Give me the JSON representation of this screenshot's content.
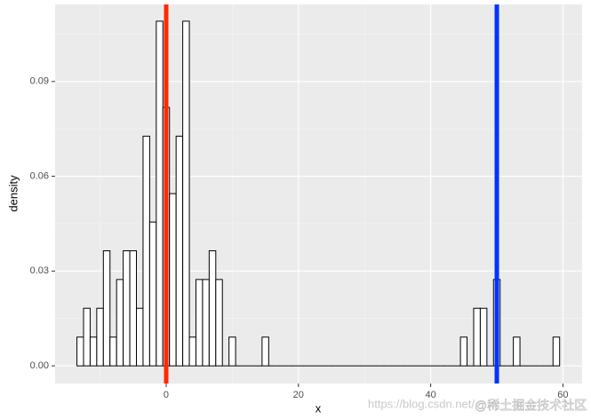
{
  "chart_data": {
    "type": "histogram",
    "x_label": "x",
    "y_label": "density",
    "bins": [
      -13.5,
      -12.5,
      -11.5,
      -10.5,
      -9.5,
      -8.5,
      -7.5,
      -6.5,
      -5.5,
      -4.5,
      -3.5,
      -2.5,
      -1.5,
      -0.5,
      0.5,
      1.5,
      2.5,
      3.5,
      4.5,
      5.5,
      6.5,
      7.5,
      8.5,
      9.5,
      10.5,
      11.5,
      12.5,
      13.5,
      14.5,
      15.5,
      16.5,
      17.5,
      18.5,
      19.5,
      20.5,
      21.5,
      22.5,
      23.5,
      24.5,
      25.5,
      26.5,
      27.5,
      28.5,
      29.5,
      30.5,
      31.5,
      32.5,
      33.5,
      34.5,
      35.5,
      36.5,
      37.5,
      38.5,
      39.5,
      40.5,
      41.5,
      42.5,
      43.5,
      44.5,
      45.5,
      46.5,
      47.5,
      48.5,
      49.5,
      50.5,
      51.5,
      52.5,
      53.5,
      54.5,
      55.5,
      56.5,
      57.5,
      58.5,
      59.5
    ],
    "values": [
      0.0091,
      0.0182,
      0.0091,
      0.0182,
      0.0364,
      0.0091,
      0.0273,
      0.0364,
      0.0364,
      0.0182,
      0.0727,
      0.0455,
      0.1091,
      0.0818,
      0.0545,
      0.0727,
      0.1091,
      0.0091,
      0.0273,
      0.0273,
      0.0364,
      0.0273,
      0,
      0.0091,
      0,
      0,
      0,
      0,
      0.0091,
      0,
      0,
      0,
      0,
      0,
      0,
      0,
      0,
      0,
      0,
      0,
      0,
      0,
      0,
      0,
      0,
      0,
      0,
      0,
      0,
      0,
      0,
      0,
      0,
      0,
      0,
      0,
      0,
      0,
      0.0091,
      0,
      0.0182,
      0.0182,
      0,
      0.0273,
      0,
      0,
      0.0091,
      0,
      0,
      0,
      0,
      0,
      0.0091
    ],
    "fill": "#ffffff",
    "edge_color": "#000000",
    "vlines": [
      {
        "x": 0,
        "color": "#ff2a00"
      },
      {
        "x": 50,
        "color": "#0033ff"
      }
    ],
    "xlim": [
      -16.8,
      62.9
    ],
    "ylim": [
      -0.0056,
      0.1144
    ],
    "xticks": [
      0,
      20,
      40,
      60
    ],
    "yticks": [
      {
        "value": 0,
        "label": "0.00"
      },
      {
        "value": 0.03,
        "label": "0.03"
      },
      {
        "value": 0.06,
        "label": "0.06"
      },
      {
        "value": 0.09,
        "label": "0.09"
      }
    ],
    "grid": true
  },
  "watermark": [
    "https://blog.csdn.net/",
    "@稀土掘金技术社区"
  ]
}
